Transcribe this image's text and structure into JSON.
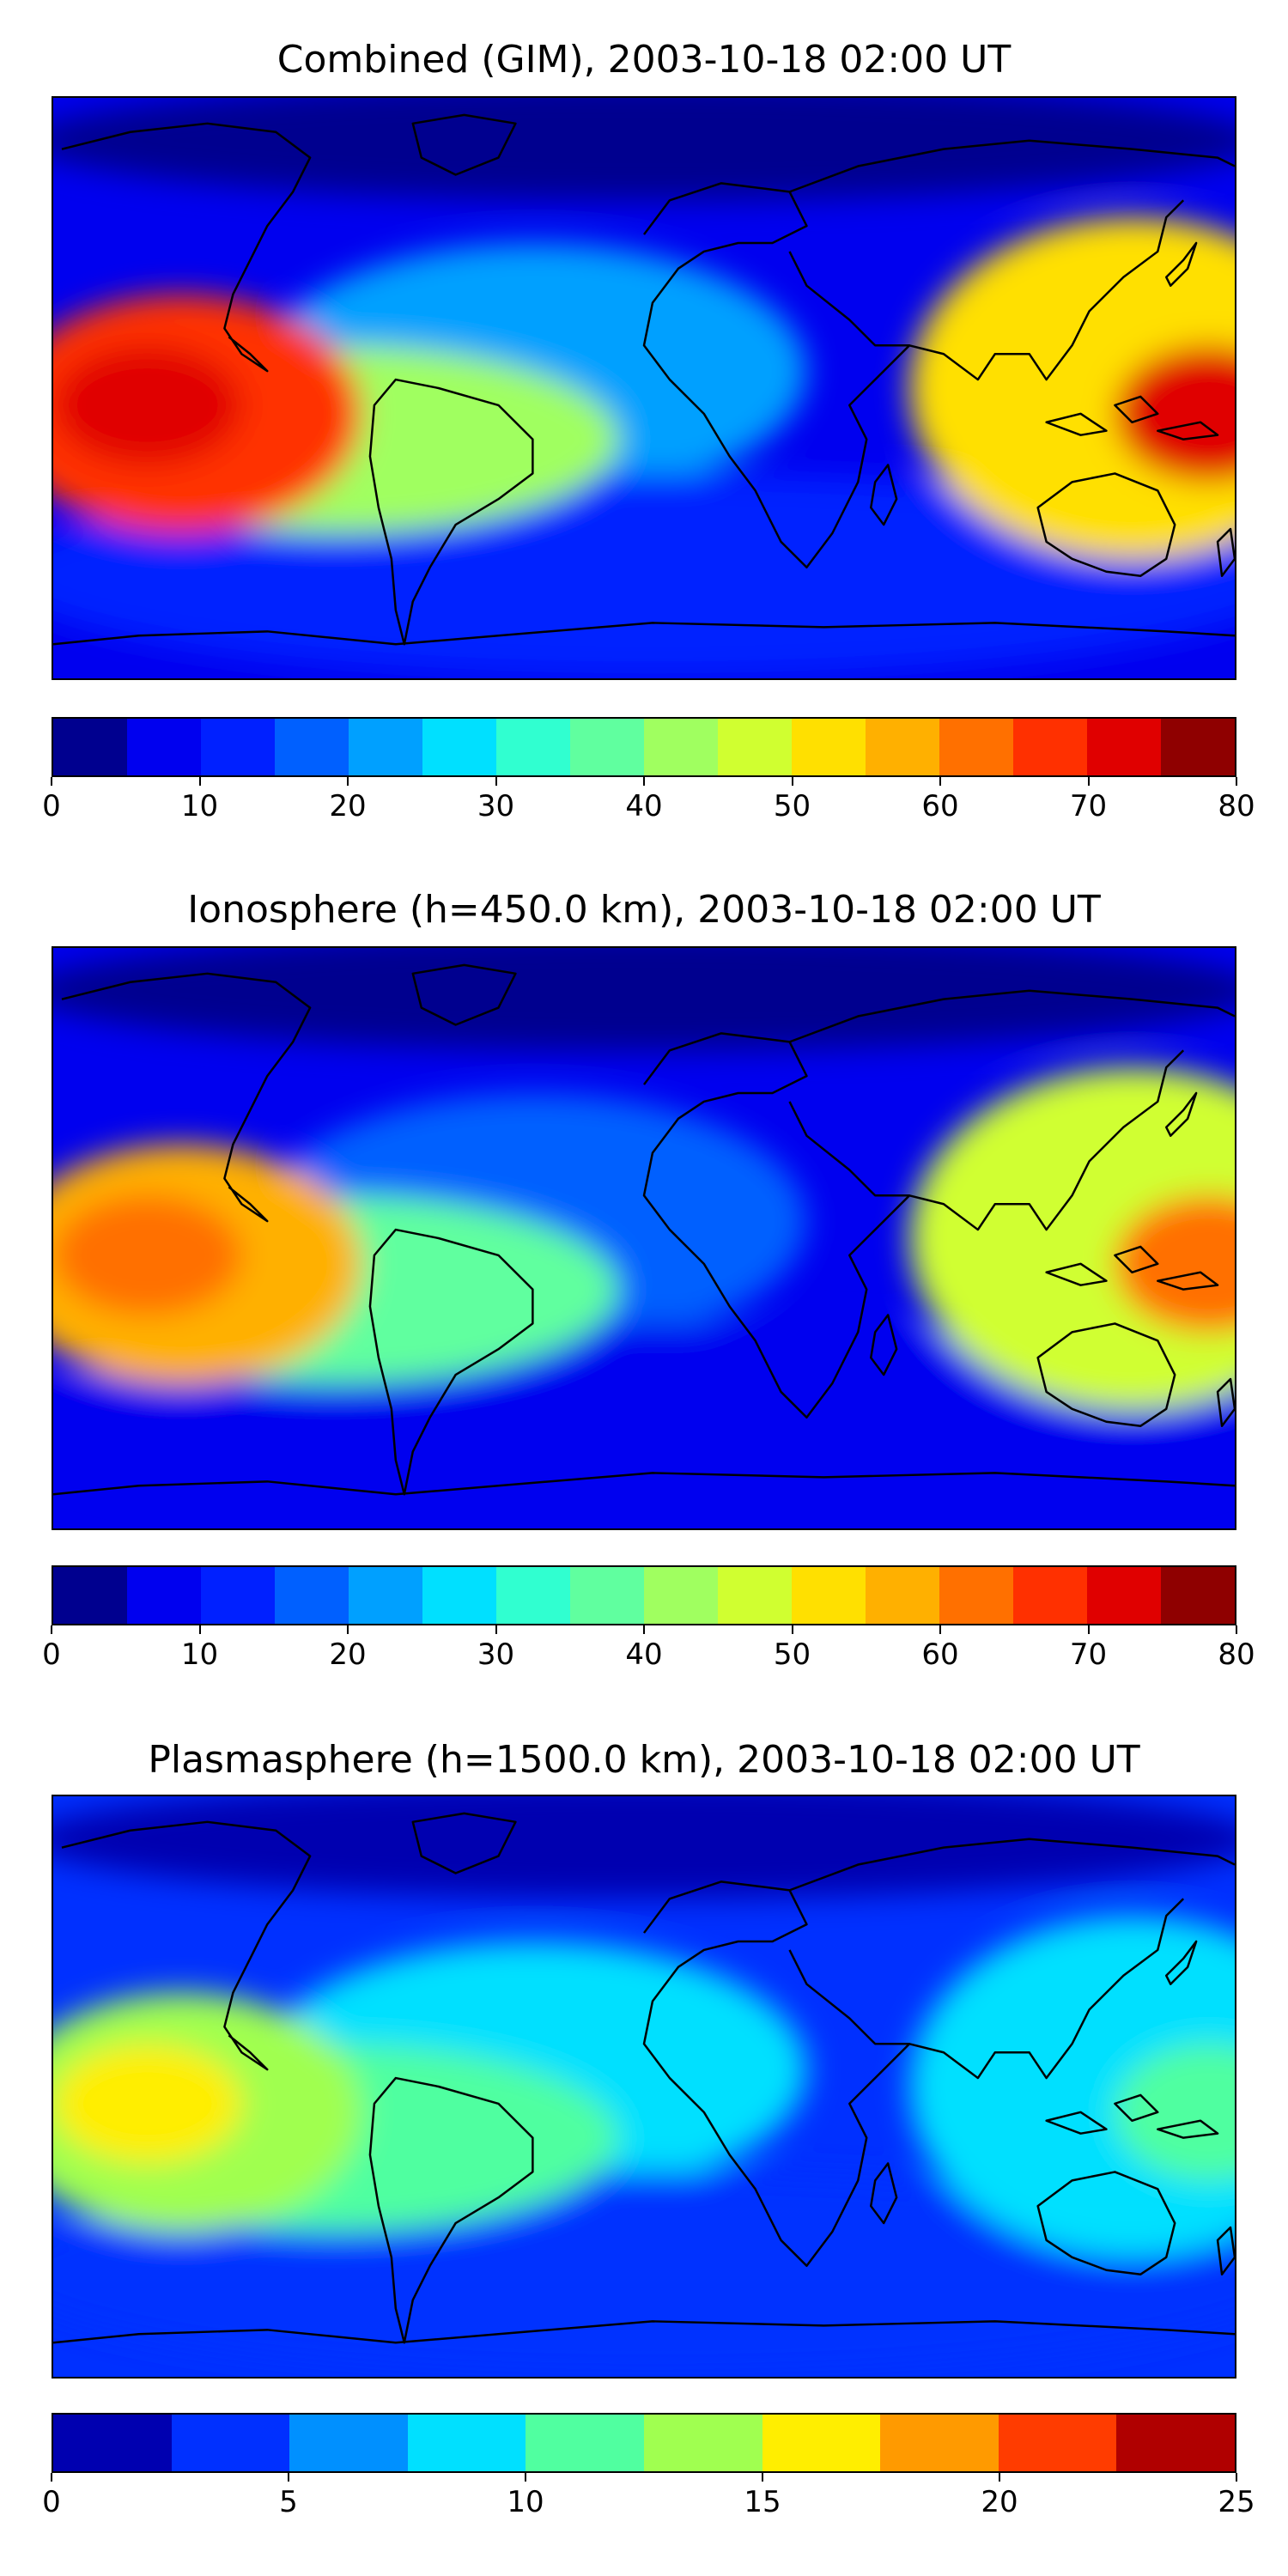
{
  "panels": [
    {
      "title": "Combined (GIM), 2003-10-18 02:00 UT",
      "colorbar": {
        "ticks": [
          "0",
          "10",
          "20",
          "30",
          "40",
          "50",
          "60",
          "70",
          "80"
        ],
        "range": [
          0,
          80
        ],
        "colors": [
          "#00008f",
          "#0000ef",
          "#0020ff",
          "#0060ff",
          "#00a0ff",
          "#00e0ff",
          "#30ffd0",
          "#60ff9f",
          "#a0ff60",
          "#d0ff30",
          "#ffe000",
          "#ffb000",
          "#ff7000",
          "#ff3000",
          "#e00000",
          "#8f0000"
        ]
      },
      "field_levels": {
        "background": 8,
        "north": 4,
        "pacific": 65,
        "pacific_core": 73,
        "america_band": 42,
        "atlantic": 22,
        "asia": 50,
        "asia_core": 70,
        "south": 10
      }
    },
    {
      "title": "Ionosphere  (h=450.0 km), 2003-10-18 02:00 UT",
      "colorbar": {
        "ticks": [
          "0",
          "10",
          "20",
          "30",
          "40",
          "50",
          "60",
          "70",
          "80"
        ],
        "range": [
          0,
          80
        ],
        "colors": [
          "#00008f",
          "#0000ef",
          "#0020ff",
          "#0060ff",
          "#00a0ff",
          "#00e0ff",
          "#30ffd0",
          "#60ff9f",
          "#a0ff60",
          "#d0ff30",
          "#ffe000",
          "#ffb000",
          "#ff7000",
          "#ff3000",
          "#e00000",
          "#8f0000"
        ]
      },
      "field_levels": {
        "background": 6,
        "north": 3,
        "pacific": 55,
        "pacific_core": 62,
        "america_band": 38,
        "atlantic": 15,
        "asia": 45,
        "asia_core": 60,
        "south": 8
      }
    },
    {
      "title": "Plasmasphere (h=1500.0 km), 2003-10-18 02:00 UT",
      "colorbar": {
        "ticks": [
          "0",
          "5",
          "10",
          "15",
          "20",
          "25"
        ],
        "range": [
          0,
          25
        ],
        "colors": [
          "#0000b0",
          "#0030ff",
          "#0090ff",
          "#00e0ff",
          "#50ffa0",
          "#a0ff50",
          "#ffee00",
          "#ff9a00",
          "#ff3c00",
          "#b00000"
        ]
      },
      "field_levels": {
        "background": 3,
        "north": 1,
        "pacific": 13,
        "pacific_core": 15.5,
        "america_band": 10,
        "atlantic": 8,
        "asia": 8,
        "asia_core": 12,
        "south": 4
      }
    }
  ]
}
